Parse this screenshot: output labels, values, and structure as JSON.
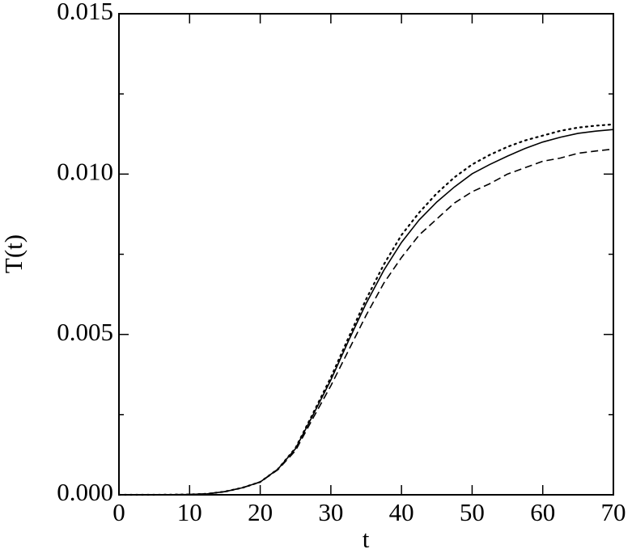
{
  "chart_data": {
    "type": "line",
    "xlabel": "t",
    "ylabel": "T(t)",
    "x": [
      0,
      5,
      10,
      12.5,
      15,
      17.5,
      20,
      22.5,
      25,
      27.5,
      30,
      32.5,
      35,
      37.5,
      40,
      42.5,
      45,
      47.5,
      50,
      52.5,
      55,
      57.5,
      60,
      62.5,
      65,
      67.5,
      70
    ],
    "series": [
      {
        "color": "#000000",
        "dash": "solid",
        "values": [
          0,
          0,
          1e-05,
          3e-05,
          0.0001,
          0.00022,
          0.0004,
          0.0008,
          0.00144,
          0.0025,
          0.00358,
          0.0048,
          0.00597,
          0.007,
          0.00787,
          0.00857,
          0.00913,
          0.0096,
          0.01001,
          0.0103,
          0.01056,
          0.0108,
          0.011,
          0.01115,
          0.01127,
          0.01134,
          0.01139
        ]
      },
      {
        "color": "#000000",
        "dash": "dotted",
        "values": [
          0,
          0,
          1e-05,
          3e-05,
          0.0001,
          0.00022,
          0.0004,
          0.0008,
          0.00146,
          0.00255,
          0.00366,
          0.0049,
          0.0061,
          0.00718,
          0.0081,
          0.0088,
          0.0094,
          0.0099,
          0.0103,
          0.0106,
          0.01085,
          0.01105,
          0.0112,
          0.01135,
          0.01145,
          0.01151,
          0.01155
        ]
      },
      {
        "color": "#000000",
        "dash": "dashed",
        "values": [
          0,
          0,
          1e-05,
          3e-05,
          0.0001,
          0.00022,
          0.0004,
          0.00078,
          0.00138,
          0.0024,
          0.0034,
          0.0045,
          0.0056,
          0.0066,
          0.0074,
          0.0081,
          0.0086,
          0.0091,
          0.00945,
          0.0097,
          0.01,
          0.0102,
          0.0104,
          0.0105,
          0.01065,
          0.01072,
          0.01078
        ]
      }
    ],
    "xlim": [
      0,
      70
    ],
    "xticks": [
      0,
      10,
      20,
      30,
      40,
      50,
      60,
      70
    ],
    "ylim": [
      0,
      0.015
    ],
    "yticks": [
      {
        "value": 0,
        "label": "0.000"
      },
      {
        "value": 0.005,
        "label": "0.005"
      },
      {
        "value": 0.01,
        "label": "0.010"
      },
      {
        "value": 0.015,
        "label": "0.015"
      }
    ],
    "yminorticks": [
      0.0025,
      0.0075,
      0.0125
    ],
    "grid": false
  }
}
